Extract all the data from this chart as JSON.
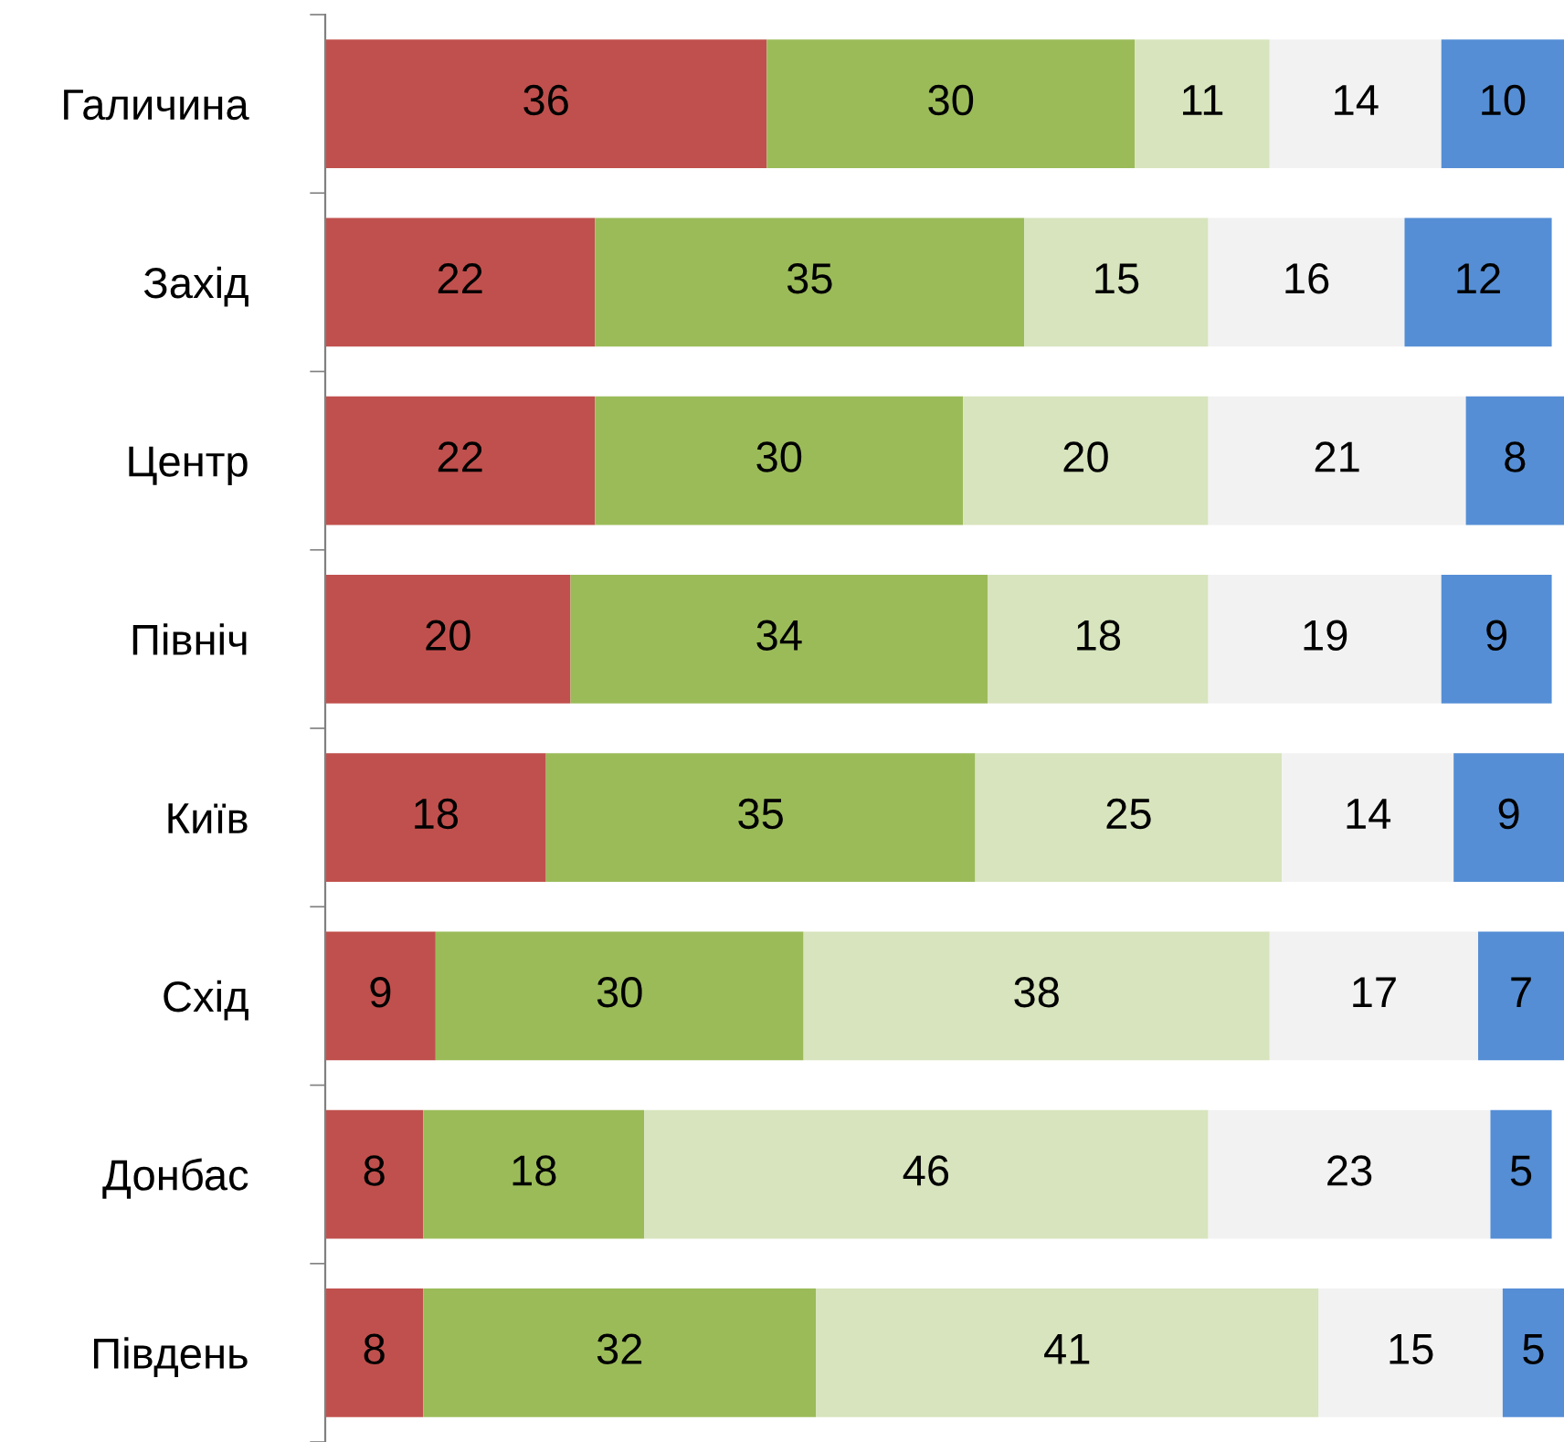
{
  "chart_data": {
    "type": "bar",
    "orientation": "horizontal",
    "stacked": true,
    "data_labels": true,
    "grid": false,
    "legend": false,
    "tick_labels": "y",
    "categories": [
      "Галичина",
      "Захід",
      "Центр",
      "Північ",
      "Київ",
      "Схід",
      "Донбас",
      "Південь"
    ],
    "series": [
      {
        "color": "#c0504d",
        "values": [
          36,
          22,
          22,
          20,
          18,
          9,
          8,
          8
        ]
      },
      {
        "color": "#9bbb59",
        "values": [
          30,
          35,
          30,
          34,
          35,
          30,
          18,
          32
        ]
      },
      {
        "color": "#d7e4bd",
        "values": [
          11,
          15,
          20,
          18,
          25,
          38,
          46,
          41
        ]
      },
      {
        "color": "#f2f2f2",
        "values": [
          14,
          16,
          21,
          19,
          14,
          17,
          23,
          15
        ]
      },
      {
        "color": "#558ed5",
        "values": [
          10,
          12,
          8,
          9,
          9,
          7,
          5,
          5
        ]
      }
    ]
  }
}
